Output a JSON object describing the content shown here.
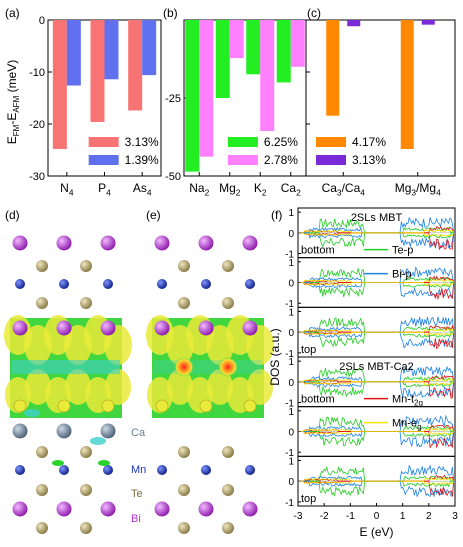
{
  "colors": {
    "red": "#f87474",
    "blue": "#6070ee",
    "green": "#22ee22",
    "pink": "#ff80ff",
    "orange": "#ff8800",
    "purple": "#7a2ad6",
    "te": "#a89a62",
    "mn": "#1a34b0",
    "bi": "#b630d8",
    "ca": "#6a7f94",
    "iso_yellow": "#eaea3a",
    "iso_green": "#2ad22a",
    "iso_cyan": "#3ecfcf",
    "dos_green": "#22cc22",
    "dos_blue": "#1e82e6",
    "dos_red": "#dd1111",
    "dos_yellow": "#f2e200"
  },
  "panel_labels": {
    "a": "(a)",
    "b": "(b)",
    "c": "(c)",
    "d": "(d)",
    "e": "(e)",
    "f": "(f)"
  },
  "bar_axis": {
    "ylabel_base": "E",
    "ylabel_sub1": "FM",
    "ylabel_mid": "-E",
    "ylabel_sub2": "AFM",
    "ylabel_unit": " (meV)"
  },
  "chart_data": [
    {
      "panel": "a",
      "type": "bar",
      "ylim": [
        -30,
        0
      ],
      "yticks": [
        0,
        -10,
        -20,
        -30
      ],
      "ytick_labels": [
        "0",
        "-10",
        "-20",
        "-30"
      ],
      "categories": [
        "N4",
        "P4",
        "As4"
      ],
      "category_labels": [
        [
          "N",
          "4"
        ],
        [
          "P",
          "4"
        ],
        [
          "As",
          "4"
        ]
      ],
      "series": [
        {
          "name": "3.13%",
          "color": "#f87474",
          "values": [
            -24.8,
            -19.6,
            -17.4
          ]
        },
        {
          "name": "1.39%",
          "color": "#6070ee",
          "values": [
            -12.6,
            -11.4,
            -10.6
          ]
        }
      ],
      "legend_position": "bottom-right"
    },
    {
      "panel": "b",
      "type": "bar",
      "ylim": [
        -50,
        0
      ],
      "yticks": [
        -25,
        -50
      ],
      "ytick_labels": [
        "-25",
        "-50"
      ],
      "categories": [
        "Na2",
        "Mg2",
        "K2",
        "Ca2"
      ],
      "category_labels": [
        [
          "Na",
          "2"
        ],
        [
          "Mg",
          "2"
        ],
        [
          "K",
          "2"
        ],
        [
          "Ca",
          "2"
        ]
      ],
      "series": [
        {
          "name": "6.25%",
          "color": "#22ee22",
          "values": [
            -48.6,
            -25.0,
            -17.4,
            -20.0
          ]
        },
        {
          "name": "2.78%",
          "color": "#ff80ff",
          "values": [
            -43.8,
            -12.2,
            -35.6,
            -15.0
          ]
        }
      ],
      "legend_position": "bottom-right"
    },
    {
      "panel": "c",
      "type": "bar",
      "ylim": [
        -30,
        0
      ],
      "yticks": [
        0,
        -10,
        -20,
        -30
      ],
      "ytick_labels": [],
      "categories": [
        "Ca3/Ca4",
        "Mg3/Mg4"
      ],
      "category_labels": [
        [
          "Ca",
          "3",
          "/Ca",
          "4"
        ],
        [
          "Mg",
          "3",
          "/Mg",
          "4"
        ]
      ],
      "series": [
        {
          "name": "4.17%",
          "color": "#ff8800",
          "values": [
            -18.4,
            -24.8
          ]
        },
        {
          "name": "3.13%",
          "color": "#7a2ad6",
          "values": [
            -1.2,
            -0.9
          ]
        }
      ],
      "legend_position": "bottom-left"
    },
    {
      "panel": "f",
      "type": "line",
      "xlabel": "E (eV)",
      "ylabel": "DOS (a.u.)",
      "xlim": [
        -3,
        3
      ],
      "xticks": [
        -3,
        -2,
        -1,
        0,
        1,
        2,
        3
      ],
      "ylim_each": [
        -1.2,
        1.2
      ],
      "yticks_each": [
        "1",
        "0",
        "-1"
      ],
      "subpanels": [
        {
          "title": "2SLs MBT",
          "tag": "bottom",
          "legend": [
            {
              "name": "Te-p",
              "color": "#22cc22"
            }
          ]
        },
        {
          "title": "",
          "tag": "",
          "legend": [
            {
              "name": "Bi-p",
              "color": "#1e82e6"
            }
          ]
        },
        {
          "title": "",
          "tag": "top",
          "legend": []
        },
        {
          "title": "2SLs MBT-Ca2",
          "tag": "bottom",
          "legend": [
            {
              "name": "Mn-t",
              "sub": "2g",
              "color": "#dd1111"
            }
          ]
        },
        {
          "title": "",
          "tag": "",
          "legend": [
            {
              "name": "Mn-e",
              "sub": "g",
              "color": "#f2e200"
            }
          ]
        },
        {
          "title": "",
          "tag": "top",
          "legend": []
        }
      ]
    }
  ],
  "structure_legend": [
    "Ca",
    "Mn",
    "Te",
    "Bi"
  ]
}
